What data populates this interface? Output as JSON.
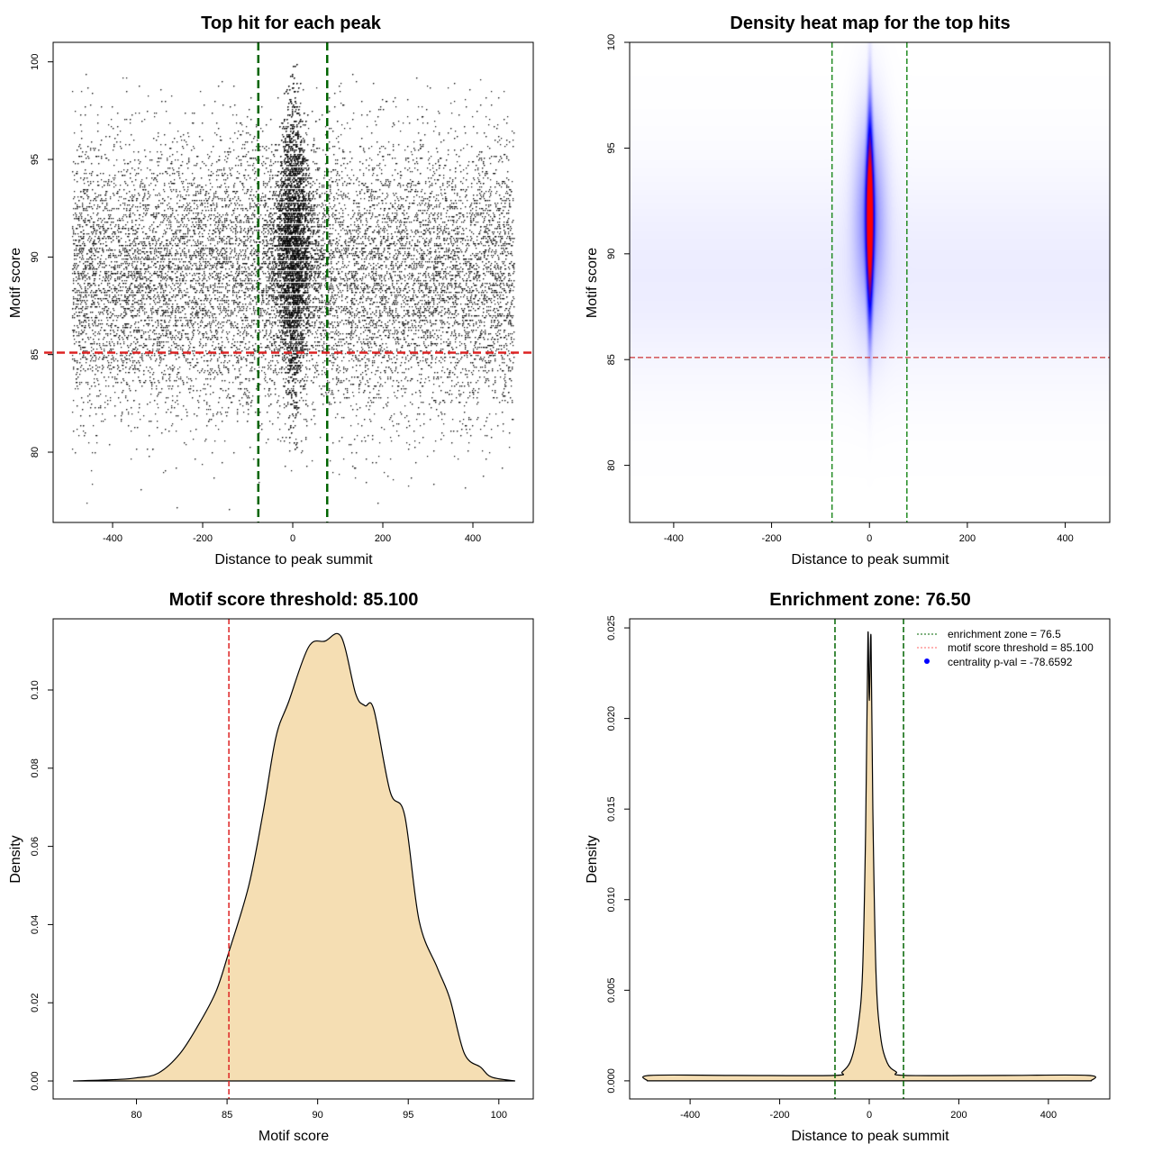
{
  "chart_data": [
    {
      "type": "scatter",
      "title": "Top hit for each peak",
      "xlabel": "Distance to peak summit",
      "ylabel": "Motif score",
      "xlim": [
        -532,
        534
      ],
      "ylim": [
        76.4,
        101
      ],
      "xticks": [
        -400,
        -200,
        0,
        200,
        400
      ],
      "yticks": [
        80,
        85,
        90,
        95,
        100
      ],
      "background_hits": {
        "count": 20000,
        "x_range": [
          -490,
          490
        ],
        "y_mean": 89,
        "y_sd": 3.5
      },
      "central_hits": {
        "count": 13000,
        "x_mean": 0,
        "x_sd": 25,
        "y_mean": 90.5,
        "y_sd": 3.4
      },
      "vlines": [
        -76.5,
        76.5
      ],
      "hline": 85.1,
      "colors": {
        "points": "#000000",
        "vlines": "#006400",
        "hline": "#dd2222"
      }
    },
    {
      "type": "heatmap",
      "title": "Density heat map for the top hits",
      "xlabel": "Distance to peak summit",
      "ylabel": "Motif score",
      "xlim": [
        -490,
        491
      ],
      "ylim": [
        77.3,
        100
      ],
      "xticks": [
        -400,
        -200,
        0,
        200,
        400
      ],
      "yticks": [
        80,
        85,
        90,
        95,
        100
      ],
      "core": {
        "x_mean": 0,
        "x_sd": 5,
        "y_mean": 91.8,
        "y_sd": 3.2
      },
      "vlines": [
        -76.5,
        76.5
      ],
      "hline": 85.1,
      "colors": {
        "low": "#ffffff",
        "mid": "#0000ff",
        "high": "#ff0000",
        "vlines": "#228B22",
        "hline": "#cc3333"
      }
    },
    {
      "type": "area",
      "title": "Motif score threshold: 85.100",
      "xlabel": "Motif score",
      "ylabel": "Density",
      "xlim": [
        75.4,
        101.9
      ],
      "ylim": [
        -0.0046,
        0.1182
      ],
      "xticks": [
        80,
        85,
        90,
        95,
        100
      ],
      "yticks": [
        "0.00",
        "0.02",
        "0.04",
        "0.06",
        "0.08",
        "0.10"
      ],
      "x": [
        76.5,
        79,
        80,
        81.2,
        82.4,
        83.5,
        84.4,
        85.1,
        86.2,
        87,
        87.7,
        88.4,
        89.5,
        90.4,
        91.3,
        92.1,
        92.6,
        93.1,
        94,
        94.8,
        95.6,
        96.6,
        97.3,
        98.1,
        99,
        99.6,
        100.9
      ],
      "y": [
        0,
        0.0004,
        0.0008,
        0.002,
        0.007,
        0.015,
        0.023,
        0.033,
        0.05,
        0.069,
        0.088,
        0.097,
        0.111,
        0.1125,
        0.1136,
        0.099,
        0.096,
        0.095,
        0.074,
        0.068,
        0.041,
        0.029,
        0.021,
        0.007,
        0.0035,
        0.001,
        0
      ],
      "vline": 85.1,
      "colors": {
        "fill": "#f5deb3",
        "line": "#000000",
        "vline": "#dd2222"
      }
    },
    {
      "type": "area",
      "title": "Enrichment zone: 76.50",
      "xlabel": "Distance to peak summit",
      "ylabel": "Density",
      "xlim": [
        -535,
        537
      ],
      "ylim": [
        -0.001,
        0.0255
      ],
      "xticks": [
        -400,
        -200,
        0,
        200,
        400
      ],
      "yticks": [
        "0.000",
        "0.005",
        "0.010",
        "0.015",
        "0.020",
        "0.025"
      ],
      "x": [
        -495,
        -490,
        -300,
        -80,
        -60,
        -40,
        -25,
        -15,
        -8,
        -3,
        0,
        4,
        8,
        15,
        25,
        40,
        60,
        80,
        300,
        490,
        495
      ],
      "y": [
        0,
        0.0003,
        0.0003,
        0.0003,
        0.0005,
        0.0012,
        0.003,
        0.006,
        0.014,
        0.0246,
        0.021,
        0.0245,
        0.015,
        0.006,
        0.0025,
        0.001,
        0.0005,
        0.0003,
        0.0003,
        0.0003,
        0
      ],
      "vlines": [
        -76.5,
        76.5
      ],
      "legend": {
        "position": "top-right",
        "entries": [
          "enrichment zone = 76.5",
          "motif score threshold = 85.100",
          "centrality p-val = -78.6592"
        ]
      },
      "colors": {
        "fill": "#f5deb3",
        "line": "#000000",
        "vlines": "#006400",
        "legend_zone": "#006400",
        "legend_threshold": "#ff6666",
        "legend_pval": "#0000ff"
      }
    }
  ]
}
